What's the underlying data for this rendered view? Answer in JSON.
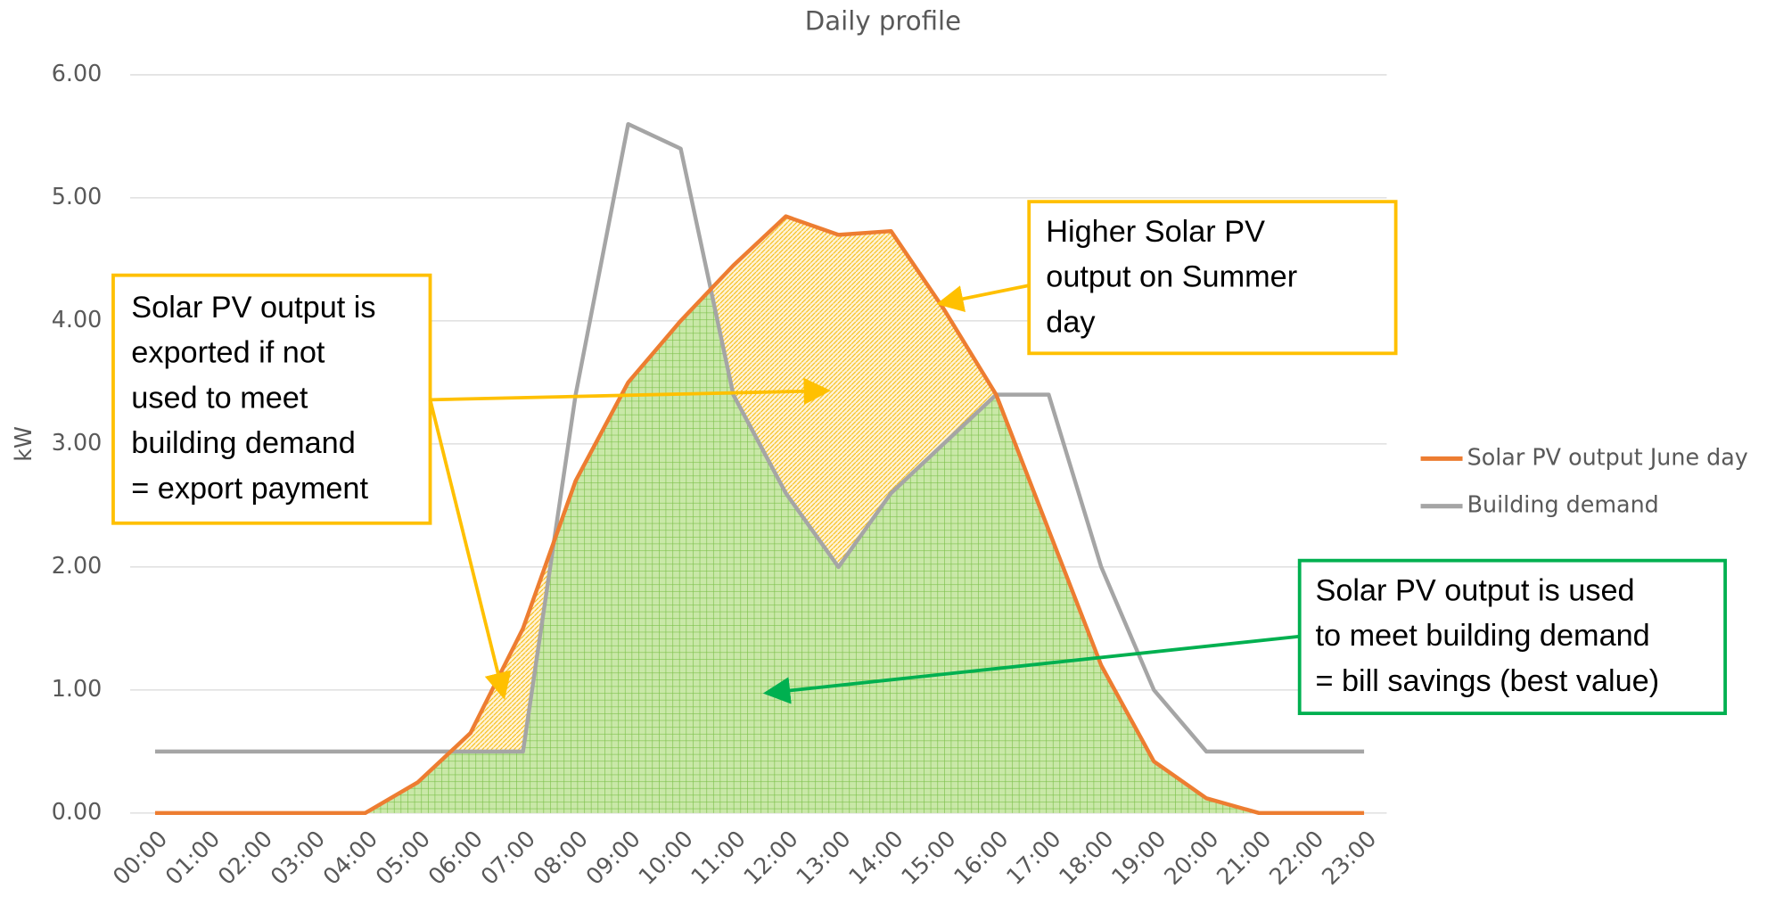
{
  "chart_data": {
    "type": "line",
    "title": "Daily profile",
    "y_label": "kW",
    "categories": [
      "00:00",
      "01:00",
      "02:00",
      "03:00",
      "04:00",
      "05:00",
      "06:00",
      "07:00",
      "08:00",
      "09:00",
      "10:00",
      "11:00",
      "12:00",
      "13:00",
      "14:00",
      "15:00",
      "16:00",
      "17:00",
      "18:00",
      "19:00",
      "20:00",
      "21:00",
      "22:00",
      "23:00"
    ],
    "series": [
      {
        "name": "Solar PV output June day",
        "color": "#ed7d31",
        "values": [
          0,
          0,
          0,
          0,
          0,
          0.25,
          0.65,
          1.5,
          2.7,
          3.5,
          4.0,
          4.45,
          4.85,
          4.7,
          4.73,
          4.1,
          3.4,
          2.3,
          1.2,
          0.42,
          0.12,
          0,
          0,
          0
        ]
      },
      {
        "name": "Building demand",
        "color": "#a5a5a5",
        "values": [
          0.5,
          0.5,
          0.5,
          0.5,
          0.5,
          0.5,
          0.5,
          0.5,
          3.4,
          5.6,
          5.4,
          3.4,
          2.6,
          2.0,
          2.6,
          3.0,
          3.4,
          3.4,
          2.0,
          1.0,
          0.5,
          0.5,
          0.5,
          0.5
        ]
      }
    ],
    "ylim": [
      0,
      6
    ],
    "yticks": [
      {
        "value": 0,
        "label": "0.00"
      },
      {
        "value": 1,
        "label": "1.00"
      },
      {
        "value": 2,
        "label": "2.00"
      },
      {
        "value": 3,
        "label": "3.00"
      },
      {
        "value": 4,
        "label": "4.00"
      },
      {
        "value": 5,
        "label": "5.00"
      },
      {
        "value": 6,
        "label": "6.00"
      }
    ],
    "grid": true,
    "legend": "right",
    "annotations": [
      {
        "lines": [
          "Solar PV output is",
          "exported if not",
          "used to meet",
          "building demand",
          "= export payment"
        ],
        "color": "#ffc000"
      },
      {
        "lines": [
          "Higher Solar PV",
          "output on Summer",
          "day"
        ],
        "color": "#ffc000"
      },
      {
        "lines": [
          "Solar PV output is used",
          "to meet building demand",
          "= bill savings (best value)"
        ],
        "color": "#00b050"
      }
    ]
  }
}
